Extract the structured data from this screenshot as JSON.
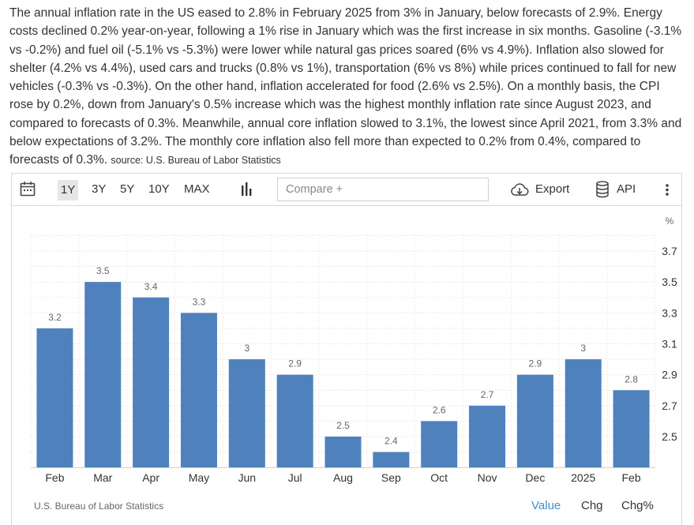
{
  "paragraph": {
    "text": "The annual inflation rate in the US eased to 2.8% in February 2025 from 3% in January, below forecasts of 2.9%. Energy costs declined 0.2% year-on-year, following a 1% rise in January which was the first increase in six months. Gasoline (-3.1% vs -0.2%) and fuel oil (-5.1% vs -5.3%) were lower while natural gas prices soared (6% vs 4.9%). Inflation also slowed for shelter (4.2% vs 4.4%), used cars and trucks (0.8% vs 1%), transportation (6% vs 8%) while prices continued to fall for new vehicles (-0.3% vs -0.3%). On the other hand, inflation accelerated for food (2.6% vs 2.5%). On a monthly basis, the CPI rose by 0.2%, down from January's 0.5% increase which was the highest monthly inflation rate since August 2023, and compared to forecasts of 0.3%. Meanwhile, annual core inflation slowed to 3.1%, the lowest since April 2021, from 3.3% and below expectations of 3.2%. The monthly core inflation also fell more than expected to 0.2% from 0.4%, compared to forecasts of 0.3%.",
    "source": "source: U.S. Bureau of Labor Statistics"
  },
  "toolbar": {
    "calendar_icon": "calendar-icon",
    "ranges": [
      "1Y",
      "3Y",
      "5Y",
      "10Y",
      "MAX"
    ],
    "active_range": "1Y",
    "chart_type_icon": "bar-chart-icon",
    "compare_placeholder": "Compare +",
    "export_icon": "cloud-download-icon",
    "export_label": "Export",
    "api_icon": "database-icon",
    "api_label": "API",
    "more_icon": "vertical-ellipsis-icon"
  },
  "chart_data": {
    "type": "bar",
    "categories": [
      "Feb",
      "Mar",
      "Apr",
      "May",
      "Jun",
      "Jul",
      "Aug",
      "Sep",
      "Oct",
      "Nov",
      "Dec",
      "2025",
      "Feb"
    ],
    "values": [
      3.2,
      3.5,
      3.4,
      3.3,
      3.0,
      2.9,
      2.5,
      2.4,
      2.6,
      2.7,
      2.9,
      3.0,
      2.8
    ],
    "value_labels": [
      "3.2",
      "3.5",
      "3.4",
      "3.3",
      "3",
      "2.9",
      "2.5",
      "2.4",
      "2.6",
      "2.7",
      "2.9",
      "3",
      "2.8"
    ],
    "y_unit": "%",
    "y_ticks": [
      "2.5",
      "2.7",
      "2.9",
      "3.1",
      "3.3",
      "3.5",
      "3.7"
    ],
    "y_tick_values": [
      2.5,
      2.7,
      2.9,
      3.1,
      3.3,
      3.5,
      3.7
    ],
    "ylim": [
      2.3,
      3.8
    ],
    "y_axis_position": "right",
    "bar_color": "#4f81bd",
    "grid": true
  },
  "footer": {
    "source": "U.S. Bureau of Labor Statistics",
    "modes": [
      "Value",
      "Chg",
      "Chg%"
    ],
    "active_mode": "Value",
    "active_color": "#3f8fd2"
  }
}
